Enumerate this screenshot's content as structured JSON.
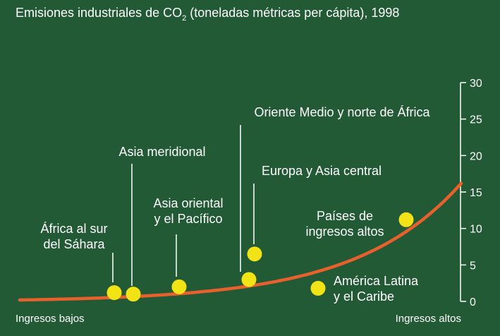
{
  "chart_data": {
    "type": "scatter",
    "title": "Emisiones industriales de CO",
    "title_subscript": "2",
    "title_suffix": " (toneladas métricas per cápita), 1998",
    "xlabel_left": "Ingresos bajos",
    "xlabel_right": "Ingresos altos",
    "ylim": [
      0,
      30
    ],
    "y_ticks": [
      "0",
      "5",
      "10",
      "15",
      "20",
      "25",
      "30"
    ],
    "trend": {
      "color": "#e8602c",
      "end_value": 16
    },
    "colors": {
      "background": "#225a36",
      "point": "#f2e317",
      "text": "#ffffff"
    },
    "series": [
      {
        "label": [
          "África al sur",
          "del Sáhara"
        ],
        "value": 1.2
      },
      {
        "label": [
          "Asia meridional"
        ],
        "value": 1.0
      },
      {
        "label": [
          "Asia oriental",
          "y el Pacífico"
        ],
        "value": 2.0
      },
      {
        "label": [
          "Oriente Medio y norte de África"
        ],
        "value": 3.0
      },
      {
        "label": [
          "Europa y Asia central"
        ],
        "value": 6.5
      },
      {
        "label": [
          "América Latina",
          "y el Caribe"
        ],
        "value": 1.8
      },
      {
        "label": [
          "Países de",
          "ingresos altos"
        ],
        "value": 11.2
      }
    ]
  }
}
